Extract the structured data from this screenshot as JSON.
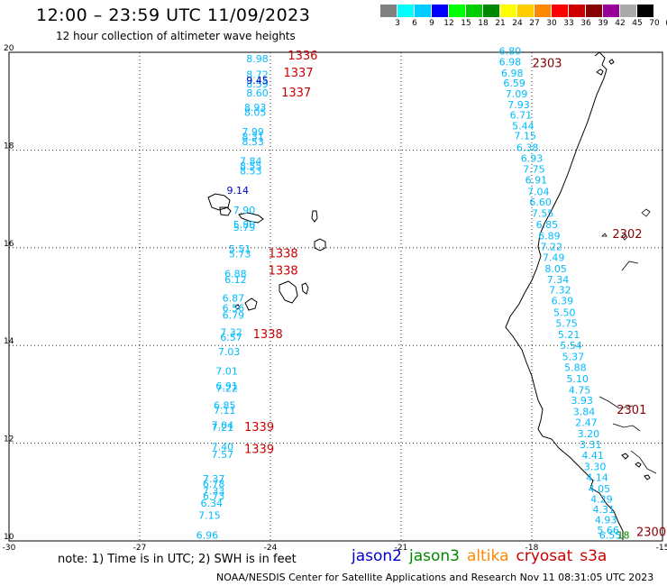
{
  "header": {
    "title": "12:00 – 23:59 UTC 11/09/2023",
    "subtitle": "12 hour collection of altimeter wave heights"
  },
  "colorbar": {
    "colors": [
      "#808080",
      "#00ffff",
      "#00ccff",
      "#0000ff",
      "#00ff00",
      "#00cc00",
      "#008800",
      "#ffff00",
      "#ffcc00",
      "#ff8800",
      "#ff0000",
      "#cc0000",
      "#880000",
      "#990099",
      "#aaaaaa",
      "#000000"
    ],
    "ticks": [
      "3",
      "6",
      "9",
      "12",
      "15",
      "18",
      "21",
      "24",
      "27",
      "30",
      "33",
      "36",
      "39",
      "42",
      "45",
      "70",
      "(ft)"
    ]
  },
  "chart_data": {
    "type": "scatter",
    "title": "12:00 – 23:59 UTC 11/09/2023",
    "subtitle": "12 hour collection of altimeter wave heights",
    "xlabel": "",
    "ylabel": "",
    "xlim": [
      -30,
      -15
    ],
    "ylim": [
      10,
      20
    ],
    "x_ticks": [
      "-30",
      "-27",
      "-24",
      "-21",
      "-18",
      "-15"
    ],
    "y_ticks": [
      "10",
      "12",
      "14",
      "16",
      "18",
      "20"
    ],
    "grid": true,
    "series": [
      {
        "name": "cryosat",
        "color": "#00bbff",
        "points": [
          {
            "x": -24.3,
            "y": 19.8,
            "v": "8.98"
          },
          {
            "x": -24.3,
            "y": 19.47,
            "v": "8.72"
          },
          {
            "x": -24.3,
            "y": 19.28,
            "v": "8.59"
          },
          {
            "x": -24.3,
            "y": 19.1,
            "v": "8.60"
          },
          {
            "x": -24.35,
            "y": 18.8,
            "v": "8.93"
          },
          {
            "x": -24.35,
            "y": 18.7,
            "v": "8.05"
          },
          {
            "x": -24.4,
            "y": 18.3,
            "v": "7.99"
          },
          {
            "x": -24.4,
            "y": 18.2,
            "v": "8.31"
          },
          {
            "x": -24.4,
            "y": 18.1,
            "v": "8.53"
          },
          {
            "x": -24.45,
            "y": 17.7,
            "v": "7.84"
          },
          {
            "x": -24.45,
            "y": 17.6,
            "v": "8.55"
          },
          {
            "x": -24.45,
            "y": 17.5,
            "v": "8.53"
          },
          {
            "x": -24.6,
            "y": 16.7,
            "v": "7.90"
          },
          {
            "x": -24.6,
            "y": 16.4,
            "v": "5.80"
          },
          {
            "x": -24.6,
            "y": 16.35,
            "v": "5.79"
          },
          {
            "x": -24.7,
            "y": 15.9,
            "v": "5.51"
          },
          {
            "x": -24.7,
            "y": 15.8,
            "v": "5.73"
          },
          {
            "x": -24.8,
            "y": 15.4,
            "v": "6.88"
          },
          {
            "x": -24.8,
            "y": 15.28,
            "v": "6.12"
          },
          {
            "x": -24.85,
            "y": 14.9,
            "v": "6.87"
          },
          {
            "x": -24.85,
            "y": 14.7,
            "v": "6.56"
          },
          {
            "x": -24.85,
            "y": 14.55,
            "v": "6.79"
          },
          {
            "x": -24.9,
            "y": 14.2,
            "v": "7.32"
          },
          {
            "x": -24.9,
            "y": 14.1,
            "v": "6.57"
          },
          {
            "x": -24.95,
            "y": 13.8,
            "v": "7.03"
          },
          {
            "x": -25.0,
            "y": 13.4,
            "v": "7.01"
          },
          {
            "x": -25.0,
            "y": 13.1,
            "v": "6.91"
          },
          {
            "x": -25.0,
            "y": 13.05,
            "v": "7.22"
          },
          {
            "x": -25.05,
            "y": 12.7,
            "v": "6.85"
          },
          {
            "x": -25.05,
            "y": 12.6,
            "v": "7.11"
          },
          {
            "x": -25.1,
            "y": 12.3,
            "v": "7.04"
          },
          {
            "x": -25.1,
            "y": 12.25,
            "v": "7.21"
          },
          {
            "x": -25.1,
            "y": 11.85,
            "v": "7.40"
          },
          {
            "x": -25.1,
            "y": 11.7,
            "v": "7.57"
          },
          {
            "x": -25.3,
            "y": 11.2,
            "v": "7.37"
          },
          {
            "x": -25.3,
            "y": 11.1,
            "v": "6.78"
          },
          {
            "x": -25.3,
            "y": 10.95,
            "v": "7.33"
          },
          {
            "x": -25.3,
            "y": 10.85,
            "v": "6.73"
          },
          {
            "x": -25.35,
            "y": 10.7,
            "v": "6.34"
          },
          {
            "x": -25.4,
            "y": 10.45,
            "v": "7.15"
          },
          {
            "x": -25.45,
            "y": 10.05,
            "v": "6.96"
          },
          {
            "x": -18.5,
            "y": 19.95,
            "v": "6.80"
          },
          {
            "x": -18.5,
            "y": 19.73,
            "v": "6.98"
          },
          {
            "x": -18.45,
            "y": 19.5,
            "v": "6.98"
          },
          {
            "x": -18.4,
            "y": 19.3,
            "v": "6.59"
          },
          {
            "x": -18.35,
            "y": 19.08,
            "v": "7.09"
          },
          {
            "x": -18.3,
            "y": 18.86,
            "v": "7.93"
          },
          {
            "x": -18.25,
            "y": 18.64,
            "v": "6.71"
          },
          {
            "x": -18.2,
            "y": 18.42,
            "v": "5.44"
          },
          {
            "x": -18.15,
            "y": 18.22,
            "v": "7.15"
          },
          {
            "x": -18.1,
            "y": 17.98,
            "v": "6.38"
          },
          {
            "x": -18.0,
            "y": 17.76,
            "v": "6.93"
          },
          {
            "x": -17.95,
            "y": 17.54,
            "v": "7.75"
          },
          {
            "x": -17.9,
            "y": 17.32,
            "v": "6.91"
          },
          {
            "x": -17.85,
            "y": 17.08,
            "v": "7.04"
          },
          {
            "x": -17.8,
            "y": 16.86,
            "v": "6.60"
          },
          {
            "x": -17.75,
            "y": 16.63,
            "v": "7.55"
          },
          {
            "x": -17.65,
            "y": 16.4,
            "v": "6.85"
          },
          {
            "x": -17.6,
            "y": 16.17,
            "v": "6.89"
          },
          {
            "x": -17.55,
            "y": 15.95,
            "v": "7.22"
          },
          {
            "x": -17.5,
            "y": 15.73,
            "v": "7.49"
          },
          {
            "x": -17.45,
            "y": 15.5,
            "v": "8.05"
          },
          {
            "x": -17.4,
            "y": 15.28,
            "v": "7.34"
          },
          {
            "x": -17.35,
            "y": 15.06,
            "v": "7.32"
          },
          {
            "x": -17.3,
            "y": 14.84,
            "v": "6.39"
          },
          {
            "x": -17.25,
            "y": 14.6,
            "v": "5.50"
          },
          {
            "x": -17.2,
            "y": 14.38,
            "v": "5.75"
          },
          {
            "x": -17.15,
            "y": 14.15,
            "v": "5.21"
          },
          {
            "x": -17.1,
            "y": 13.93,
            "v": "5.54"
          },
          {
            "x": -17.05,
            "y": 13.7,
            "v": "5.37"
          },
          {
            "x": -17.0,
            "y": 13.48,
            "v": "5.88"
          },
          {
            "x": -16.95,
            "y": 13.25,
            "v": "5.10"
          },
          {
            "x": -16.9,
            "y": 13.02,
            "v": "4.75"
          },
          {
            "x": -16.85,
            "y": 12.8,
            "v": "3.93"
          },
          {
            "x": -16.8,
            "y": 12.57,
            "v": "3.84"
          },
          {
            "x": -16.75,
            "y": 12.35,
            "v": "2.47"
          },
          {
            "x": -16.7,
            "y": 12.12,
            "v": "3.20"
          },
          {
            "x": -16.65,
            "y": 11.9,
            "v": "3.31"
          },
          {
            "x": -16.6,
            "y": 11.68,
            "v": "4.41"
          },
          {
            "x": -16.55,
            "y": 11.45,
            "v": "3.30"
          },
          {
            "x": -16.5,
            "y": 11.23,
            "v": "4.14"
          },
          {
            "x": -16.45,
            "y": 11.0,
            "v": "4.05"
          },
          {
            "x": -16.4,
            "y": 10.78,
            "v": "4.29"
          },
          {
            "x": -16.35,
            "y": 10.57,
            "v": "4.31"
          },
          {
            "x": -16.3,
            "y": 10.36,
            "v": "4.93"
          },
          {
            "x": -16.25,
            "y": 10.15,
            "v": "5.66"
          },
          {
            "x": -16.2,
            "y": 10.05,
            "v": "6.55"
          }
        ]
      },
      {
        "name": "jason2",
        "color": "#0000cc",
        "points": [
          {
            "x": -24.3,
            "y": 19.35,
            "v": "9.45"
          },
          {
            "x": -24.75,
            "y": 17.1,
            "v": "9.14"
          }
        ]
      },
      {
        "name": "jason3",
        "color": "#008800",
        "points": [
          {
            "x": -15.9,
            "y": 10.05,
            "v": "18"
          }
        ]
      }
    ],
    "pass_labels": [
      {
        "x": -23.6,
        "y": 19.85,
        "v": "1336",
        "color": "#cc0000"
      },
      {
        "x": -23.7,
        "y": 19.5,
        "v": "1337",
        "color": "#cc0000"
      },
      {
        "x": -23.75,
        "y": 19.1,
        "v": "1337",
        "color": "#cc0000"
      },
      {
        "x": -24.05,
        "y": 15.8,
        "v": "1338",
        "color": "#cc0000"
      },
      {
        "x": -24.05,
        "y": 15.45,
        "v": "1338",
        "color": "#cc0000"
      },
      {
        "x": -24.4,
        "y": 14.15,
        "v": "1338",
        "color": "#cc0000"
      },
      {
        "x": -24.6,
        "y": 12.25,
        "v": "1339",
        "color": "#cc0000"
      },
      {
        "x": -24.6,
        "y": 11.8,
        "v": "1339",
        "color": "#cc0000"
      },
      {
        "x": -17.99,
        "y": 19.7,
        "v": "2303",
        "color": "#880000"
      },
      {
        "x": -16.15,
        "y": 16.2,
        "v": "2302",
        "color": "#880000"
      },
      {
        "x": -16.05,
        "y": 12.6,
        "v": "2301",
        "color": "#880000"
      },
      {
        "x": -15.6,
        "y": 10.1,
        "v": "2300",
        "color": "#880000"
      }
    ]
  },
  "footer": {
    "note": "note:  1) Time is in UTC;  2) SWH is in feet",
    "legend": [
      {
        "label": "jason2",
        "color": "#0000cc"
      },
      {
        "label": "jason3",
        "color": "#008800"
      },
      {
        "label": "altika",
        "color": "#ff8800"
      },
      {
        "label": "cryosat",
        "color": "#cc0000"
      },
      {
        "label": "s3a",
        "color": "#cc0000"
      }
    ],
    "credit": "NOAA/NESDIS Center for Satellite Applications and Research     Nov 11 08:31:05 UTC 2023"
  }
}
